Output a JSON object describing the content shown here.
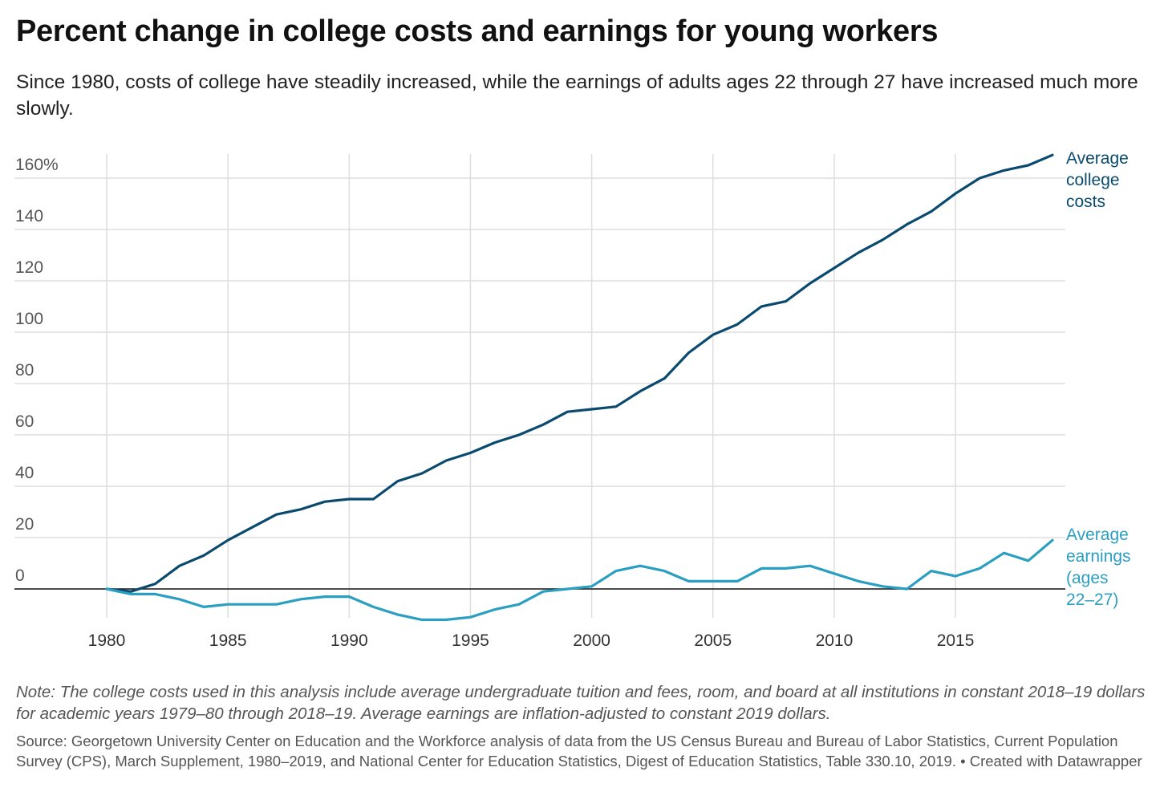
{
  "title": "Percent change in college costs and earnings for young workers",
  "subtitle": "Since 1980, costs of college have steadily increased, while the earnings of adults ages 22 through 27 have increased much more slowly.",
  "note": "Note: The college costs used in this analysis include average undergraduate tuition and fees, room, and board at all institutions in constant 2018–19 dollars for academic years 1979–80 through 2018–19. Average earnings are inflation-adjusted to constant 2019 dollars.",
  "source": "Source: Georgetown University Center on Education and the Workforce analysis of data from the US Census Bureau and Bureau of Labor Statistics, Current Population Survey (CPS), March Supplement, 1980–2019, and National Center for Education Statistics, Digest of Education Statistics, Table 330.10, 2019. • Created with Datawrapper",
  "chart_data": {
    "type": "line",
    "title": "Percent change in college costs and earnings for young workers",
    "xlim": [
      1980,
      2019
    ],
    "ylim": [
      -12,
      168
    ],
    "grid": true,
    "legend": "inline labels at right end of lines",
    "y_ticks": [
      "160%",
      "140",
      "120",
      "100",
      "80",
      "60",
      "40",
      "20",
      "0"
    ],
    "y_tick_values": [
      160,
      140,
      120,
      100,
      80,
      60,
      40,
      20,
      0
    ],
    "x_ticks": [
      "1980",
      "1985",
      "1990",
      "1995",
      "2000",
      "2005",
      "2010",
      "2015"
    ],
    "x_tick_values": [
      1980,
      1985,
      1990,
      1995,
      2000,
      2005,
      2010,
      2015
    ],
    "x": [
      1980,
      1981,
      1982,
      1983,
      1984,
      1985,
      1986,
      1987,
      1988,
      1989,
      1990,
      1991,
      1992,
      1993,
      1994,
      1995,
      1996,
      1997,
      1998,
      1999,
      2000,
      2001,
      2002,
      2003,
      2004,
      2005,
      2006,
      2007,
      2008,
      2009,
      2010,
      2011,
      2012,
      2013,
      2014,
      2015,
      2016,
      2017,
      2018,
      2019
    ],
    "series": [
      {
        "name": "Average college costs",
        "label_lines": [
          "Average",
          "college",
          "costs"
        ],
        "color": "#0b4a6f",
        "values": [
          0,
          -1,
          2,
          9,
          13,
          19,
          24,
          29,
          31,
          34,
          35,
          35,
          42,
          45,
          50,
          53,
          57,
          60,
          64,
          69,
          70,
          71,
          77,
          82,
          92,
          99,
          103,
          110,
          112,
          119,
          125,
          131,
          136,
          142,
          147,
          154,
          160,
          163,
          165,
          169
        ]
      },
      {
        "name": "Average earnings (ages 22–27)",
        "label_lines": [
          "Average",
          "earnings",
          "(ages",
          "22–27)"
        ],
        "color": "#2a9fc1",
        "values": [
          0,
          -2,
          -2,
          -4,
          -7,
          -6,
          -6,
          -6,
          -4,
          -3,
          -3,
          -7,
          -10,
          -12,
          -12,
          -11,
          -8,
          -6,
          -1,
          0,
          1,
          7,
          9,
          7,
          3,
          3,
          3,
          8,
          8,
          9,
          6,
          3,
          1,
          0,
          7,
          5,
          8,
          14,
          11,
          19
        ]
      }
    ]
  }
}
